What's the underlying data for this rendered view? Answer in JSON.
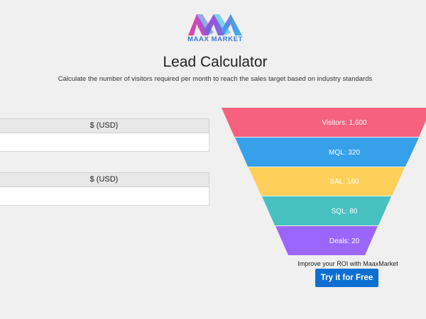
{
  "brand": {
    "name": "MAAX MARKET"
  },
  "page": {
    "title": "Lead Calculator",
    "subtitle": "Calculate the number of visitors required per month to reach the sales target based on industry standards"
  },
  "fields": [
    {
      "unit_label": "$ (USD)",
      "value": ""
    },
    {
      "unit_label": "$ (USD)",
      "value": ""
    }
  ],
  "funnel": {
    "stages": [
      {
        "label": "Visitors: 1,600",
        "color": "#f5617e"
      },
      {
        "label": "MQL: 320",
        "color": "#37a0ea"
      },
      {
        "label": "SAL: 160",
        "color": "#fecf59"
      },
      {
        "label": "SQL: 80",
        "color": "#47c0c0"
      },
      {
        "label": "Deals: 20",
        "color": "#9b66ff"
      }
    ]
  },
  "cta": {
    "text": "Improve your ROI with MaaxMarket",
    "button_label": "Try it for Free",
    "color": "#0d6fd1"
  }
}
